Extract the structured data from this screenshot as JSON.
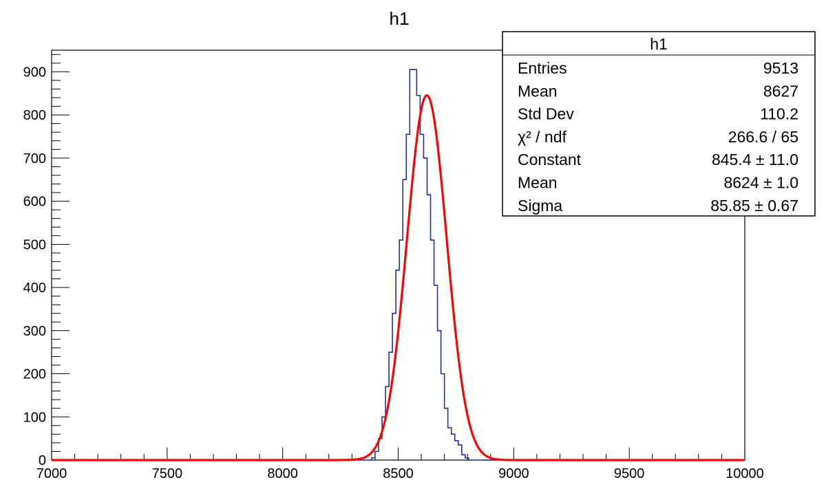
{
  "chart_data": {
    "type": "histogram",
    "title": "h1",
    "xlim": [
      7000,
      10000
    ],
    "ylim": [
      0,
      950
    ],
    "x_ticks": [
      "7000",
      "7500",
      "8000",
      "8500",
      "9000",
      "9500",
      "10000"
    ],
    "y_ticks": [
      "0",
      "100",
      "200",
      "300",
      "400",
      "500",
      "600",
      "700",
      "800",
      "900"
    ],
    "bin_width": 15,
    "hist_start": 8325,
    "counts": [
      0,
      0,
      0,
      0,
      5,
      20,
      50,
      100,
      170,
      250,
      340,
      440,
      510,
      650,
      755,
      905,
      905,
      845,
      755,
      700,
      615,
      510,
      405,
      300,
      200,
      120,
      75,
      60,
      45,
      35,
      12,
      5,
      0
    ],
    "hist_color": "#1f2fa8",
    "fit": {
      "function": "gaus",
      "constant": 845.4,
      "mean": 8624,
      "sigma": 85.85,
      "color": "#ff0000"
    },
    "stats": {
      "title": "h1",
      "rows": [
        {
          "label": "Entries",
          "value": "9513"
        },
        {
          "label": "Mean",
          "value": "8627"
        },
        {
          "label": "Std Dev",
          "value": "110.2"
        },
        {
          "label": "χ² / ndf",
          "value": "266.6 / 65"
        },
        {
          "label": "Constant",
          "value": "845.4 ± 11.0"
        },
        {
          "label": "Mean",
          "value": "8624 ± 1.0"
        },
        {
          "label": "Sigma",
          "value": "85.85 ± 0.67"
        }
      ]
    }
  }
}
